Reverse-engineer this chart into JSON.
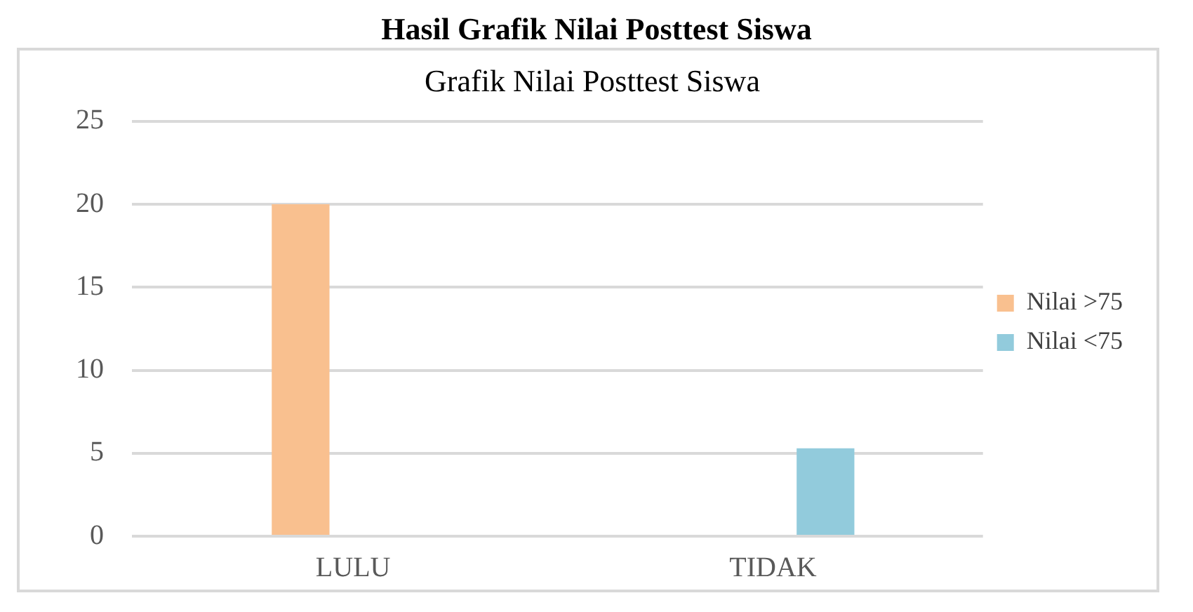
{
  "chart_data": {
    "type": "bar",
    "title": "Hasil Grafik Nilai Posttest Siswa",
    "subtitle": "Grafik Nilai Posttest Siswa",
    "categories": [
      "LULU",
      "TIDAK"
    ],
    "series": [
      {
        "name": "Nilai >75",
        "color": "#f9c08f",
        "values": [
          20,
          0
        ]
      },
      {
        "name": "Nilai <75",
        "color": "#92cbdc",
        "values": [
          0,
          5.3
        ]
      }
    ],
    "ylim": [
      0,
      25
    ],
    "yticks": [
      0,
      5,
      10,
      15,
      20,
      25
    ],
    "grid": "y",
    "legend": "right"
  }
}
